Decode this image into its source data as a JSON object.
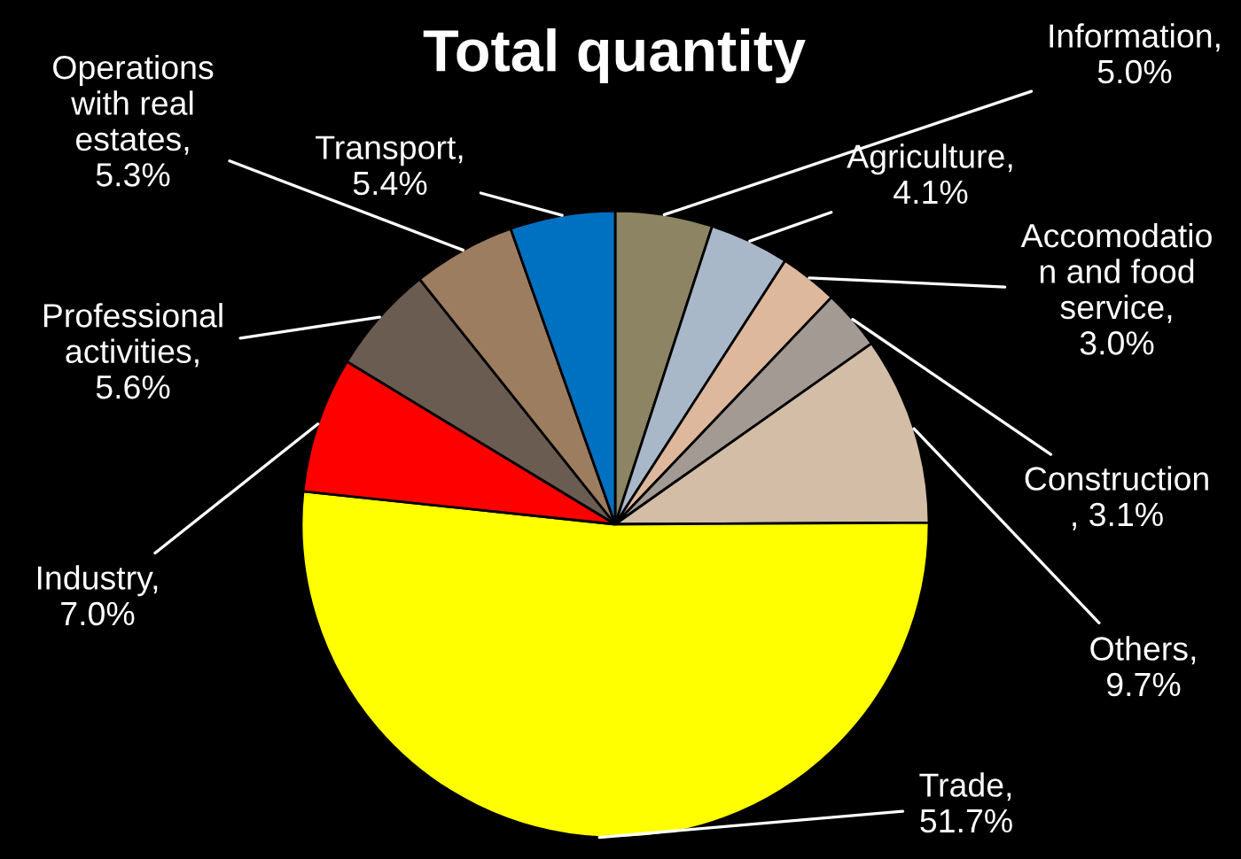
{
  "chart_data": {
    "type": "pie",
    "title": "Total quantity",
    "categories": [
      "Information",
      "Agriculture",
      "Accomodation and food service",
      "Construction",
      "Others",
      "Trade",
      "Industry",
      "Professional activities",
      "Operations with real estates",
      "Transport"
    ],
    "values": [
      5.0,
      4.1,
      3.0,
      3.1,
      9.7,
      51.7,
      7.0,
      5.6,
      5.3,
      5.4
    ],
    "value_labels": [
      ",\n5.0%",
      ",\n4.1%",
      ",\n3.0%",
      "\n, 3.1%",
      ",\n9.7%",
      ",\n51.7%",
      ",\n7.0%",
      ",\n5.6%",
      ",\n5.3%",
      ",\n5.4%"
    ],
    "colors": [
      "#8c8462",
      "#a9b8c8",
      "#deb89c",
      "#a39a93",
      "#d3bda6",
      "#ffff00",
      "#ff0000",
      "#6b5c52",
      "#9d7d5f",
      "#0070c0"
    ],
    "legend": false
  }
}
